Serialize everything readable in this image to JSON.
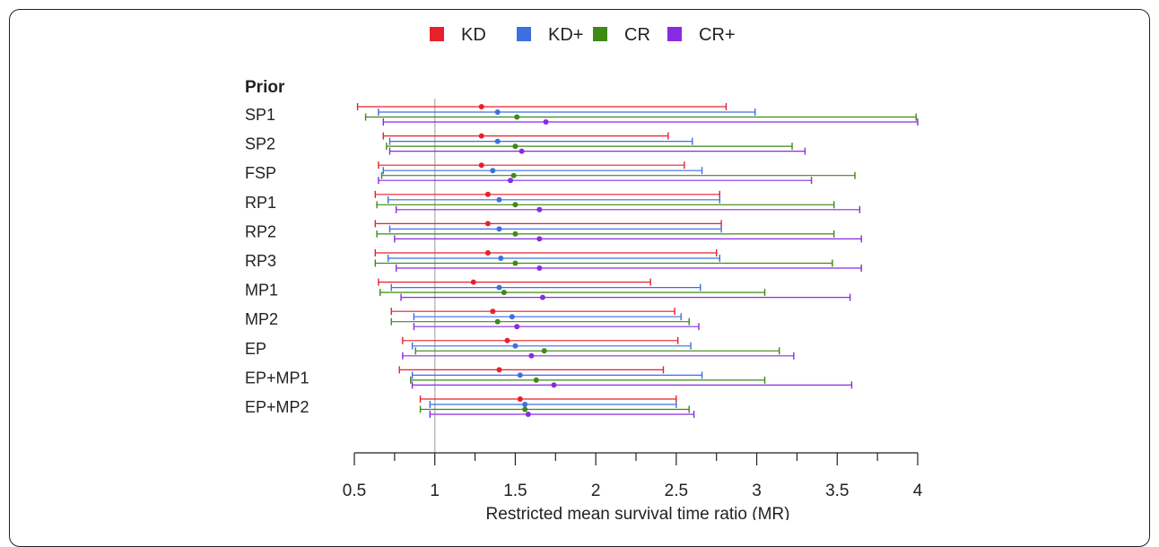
{
  "chart_data": {
    "type": "forest",
    "legend": [
      {
        "name": "KD",
        "color": "#e8202a"
      },
      {
        "name": "KD+",
        "color": "#3e6fe0"
      },
      {
        "name": "CR",
        "color": "#3e8a15"
      },
      {
        "name": "CR+",
        "color": "#8a2be2"
      }
    ],
    "legend_position": "top-center",
    "group_title": "Prior",
    "xlabel": "Restricted mean survival time ratio (MR)",
    "xlim": [
      0.5,
      4
    ],
    "xticks": [
      0.5,
      1,
      1.5,
      2,
      2.5,
      3,
      3.5,
      4
    ],
    "xtick_labels": [
      "0.5",
      "1",
      "1.5",
      "2",
      "2.5",
      "3",
      "3.5",
      "4"
    ],
    "reference_line": 1,
    "rows": [
      {
        "label": "SP1",
        "series": [
          {
            "est": 1.29,
            "lo": 0.52,
            "hi": 2.81
          },
          {
            "est": 1.39,
            "lo": 0.65,
            "hi": 2.99
          },
          {
            "est": 1.51,
            "lo": 0.57,
            "hi": 3.99
          },
          {
            "est": 1.69,
            "lo": 0.68,
            "hi": 4.0
          }
        ]
      },
      {
        "label": "SP2",
        "series": [
          {
            "est": 1.29,
            "lo": 0.68,
            "hi": 2.45
          },
          {
            "est": 1.39,
            "lo": 0.72,
            "hi": 2.6
          },
          {
            "est": 1.5,
            "lo": 0.7,
            "hi": 3.22
          },
          {
            "est": 1.54,
            "lo": 0.72,
            "hi": 3.3
          }
        ]
      },
      {
        "label": "FSP",
        "series": [
          {
            "est": 1.29,
            "lo": 0.65,
            "hi": 2.55
          },
          {
            "est": 1.36,
            "lo": 0.68,
            "hi": 2.66
          },
          {
            "est": 1.49,
            "lo": 0.67,
            "hi": 3.61
          },
          {
            "est": 1.47,
            "lo": 0.65,
            "hi": 3.34
          }
        ]
      },
      {
        "label": "RP1",
        "series": [
          {
            "est": 1.33,
            "lo": 0.63,
            "hi": 2.77
          },
          {
            "est": 1.4,
            "lo": 0.71,
            "hi": 2.77
          },
          {
            "est": 1.5,
            "lo": 0.64,
            "hi": 3.48
          },
          {
            "est": 1.65,
            "lo": 0.76,
            "hi": 3.64
          }
        ]
      },
      {
        "label": "RP2",
        "series": [
          {
            "est": 1.33,
            "lo": 0.63,
            "hi": 2.78
          },
          {
            "est": 1.4,
            "lo": 0.72,
            "hi": 2.78
          },
          {
            "est": 1.5,
            "lo": 0.64,
            "hi": 3.48
          },
          {
            "est": 1.65,
            "lo": 0.75,
            "hi": 3.65
          }
        ]
      },
      {
        "label": "RP3",
        "series": [
          {
            "est": 1.33,
            "lo": 0.63,
            "hi": 2.75
          },
          {
            "est": 1.41,
            "lo": 0.71,
            "hi": 2.77
          },
          {
            "est": 1.5,
            "lo": 0.63,
            "hi": 3.47
          },
          {
            "est": 1.65,
            "lo": 0.76,
            "hi": 3.65
          }
        ]
      },
      {
        "label": "MP1",
        "series": [
          {
            "est": 1.24,
            "lo": 0.65,
            "hi": 2.34
          },
          {
            "est": 1.4,
            "lo": 0.73,
            "hi": 2.65
          },
          {
            "est": 1.43,
            "lo": 0.66,
            "hi": 3.05
          },
          {
            "est": 1.67,
            "lo": 0.79,
            "hi": 3.58
          }
        ]
      },
      {
        "label": "MP2",
        "series": [
          {
            "est": 1.36,
            "lo": 0.73,
            "hi": 2.49
          },
          {
            "est": 1.48,
            "lo": 0.87,
            "hi": 2.53
          },
          {
            "est": 1.39,
            "lo": 0.73,
            "hi": 2.58
          },
          {
            "est": 1.51,
            "lo": 0.87,
            "hi": 2.64
          }
        ]
      },
      {
        "label": "EP",
        "series": [
          {
            "est": 1.45,
            "lo": 0.8,
            "hi": 2.51
          },
          {
            "est": 1.5,
            "lo": 0.86,
            "hi": 2.59
          },
          {
            "est": 1.68,
            "lo": 0.88,
            "hi": 3.14
          },
          {
            "est": 1.6,
            "lo": 0.8,
            "hi": 3.23
          }
        ]
      },
      {
        "label": "EP+MP1",
        "series": [
          {
            "est": 1.4,
            "lo": 0.78,
            "hi": 2.42
          },
          {
            "est": 1.53,
            "lo": 0.86,
            "hi": 2.66
          },
          {
            "est": 1.63,
            "lo": 0.85,
            "hi": 3.05
          },
          {
            "est": 1.74,
            "lo": 0.86,
            "hi": 3.59
          }
        ]
      },
      {
        "label": "EP+MP2",
        "series": [
          {
            "est": 1.53,
            "lo": 0.91,
            "hi": 2.5
          },
          {
            "est": 1.56,
            "lo": 0.97,
            "hi": 2.5
          },
          {
            "est": 1.56,
            "lo": 0.91,
            "hi": 2.58
          },
          {
            "est": 1.58,
            "lo": 0.97,
            "hi": 2.61
          }
        ]
      }
    ]
  }
}
